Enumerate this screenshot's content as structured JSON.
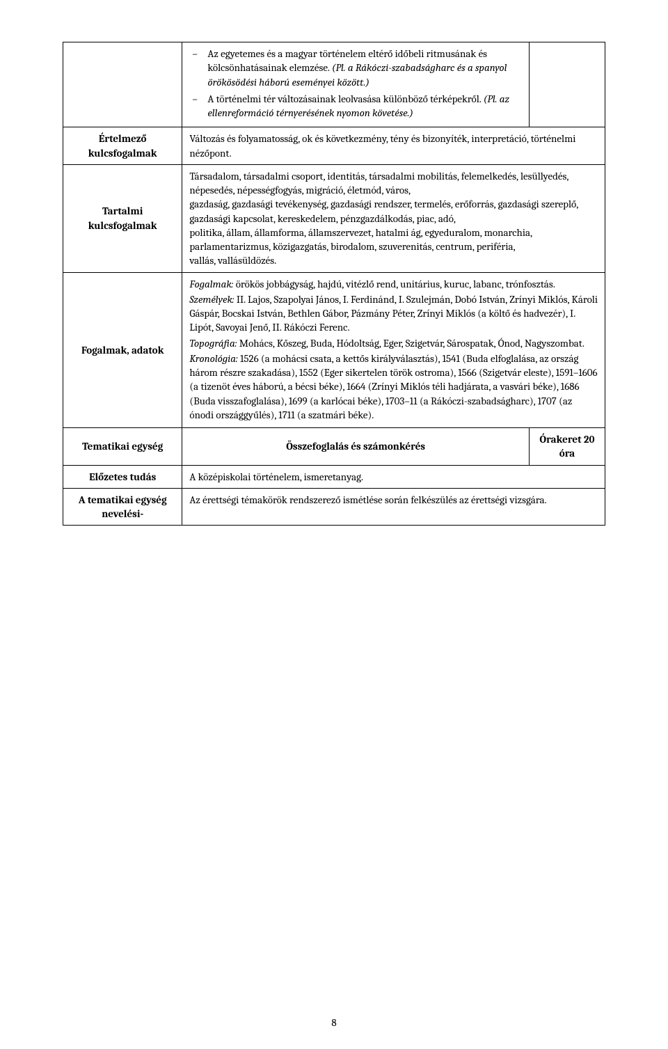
{
  "bullets": {
    "item1_runs": [
      {
        "t": "Az egyetemes és a magyar történelem eltérő időbeli ritmusának és kölcsönhatásainak elemzése. ",
        "i": false
      },
      {
        "t": "(Pl. a Rákóczi-szabadságharc és a spanyol örökösödési háború eseményei között.)",
        "i": true
      }
    ],
    "item2_runs": [
      {
        "t": "A történelmi tér változásainak leolvasása különböző térképekről. ",
        "i": false
      },
      {
        "t": "(Pl. az ellenreformáció térnyerésének nyomon követése.)",
        "i": true
      }
    ]
  },
  "rows": {
    "ertelmezo": {
      "label": "Értelmező kulcsfogalmak",
      "text": "Változás és folyamatosság, ok és következmény, tény és bizonyíték, interpretáció, történelmi nézőpont."
    },
    "tartalmi": {
      "label": "Tartalmi kulcsfogalmak",
      "text": "Társadalom, társadalmi csoport, identitás, társadalmi mobilitás, felemelkedés, lesüllyedés, népesedés, népességfogyás, migráció, életmód, város,\ngazdaság, gazdasági tevékenység, gazdasági rendszer, termelés, erőforrás, gazdasági szereplő, gazdasági kapcsolat, kereskedelem, pénzgazdálkodás, piac, adó,\npolitika, állam, államforma, államszervezet, hatalmi ág, egyeduralom, monarchia, parlamentarizmus, közigazgatás, birodalom, szuverenitás, centrum, periféria,\nvallás, vallásüldözés."
    },
    "fogalmak": {
      "label": "Fogalmak, adatok",
      "p1_runs": [
        {
          "t": "Fogalmak:",
          "i": true
        },
        {
          "t": " örökös jobbágyság, hajdú, vitézlő rend, unitárius, kuruc, labanc, trónfosztás.",
          "i": false
        }
      ],
      "p2_runs": [
        {
          "t": "Személyek:",
          "i": true
        },
        {
          "t": " II. Lajos, Szapolyai János, I. Ferdinánd, I. Szulejmán, Dobó István, Zrínyi Miklós, Károli Gáspár, Bocskai István, Bethlen Gábor, Pázmány Péter, Zrínyi Miklós (a költő és hadvezér), I. Lipót, Savoyai Jenő, II. Rákóczi Ferenc.",
          "i": false
        }
      ],
      "p3_runs": [
        {
          "t": "Topográfia:",
          "i": true
        },
        {
          "t": " Mohács, Kőszeg, Buda, Hódoltság, Eger, Szigetvár, Sárospatak, Ónod, Nagyszombat.",
          "i": false
        }
      ],
      "p4_runs": [
        {
          "t": "Kronológia:",
          "i": true
        },
        {
          "t": " 1526 (a mohácsi csata, a kettős királyválasztás), 1541 (Buda elfoglalása, az ország három részre szakadása), 1552 (Eger sikertelen török ostroma), 1566 (Szigetvár eleste), 1591–1606 (a tizenöt éves háború, a bécsi béke), 1664 (Zrínyi Miklós téli hadjárata, a vasvári béke), 1686 (Buda visszafoglalása), 1699 (a karlócai béke), 1703–11 (a Rákóczi-szabadságharc), 1707 (az ónodi országgyűlés), 1711 (a szatmári béke).",
          "i": false
        }
      ]
    },
    "tematikai": {
      "label": "Tematikai egység",
      "center": "Összefoglalás és számonkérés",
      "hours": "Órakeret 20 óra"
    },
    "elozetes": {
      "label": "Előzetes tudás",
      "text": "A középiskolai történelem, ismeretanyag."
    },
    "nevelesi": {
      "label": "A tematikai egység nevelési-",
      "text": "Az érettségi témakörök rendszerező ismétlése során felkészülés az érettségi vizsgára."
    }
  },
  "pageNumber": "8"
}
